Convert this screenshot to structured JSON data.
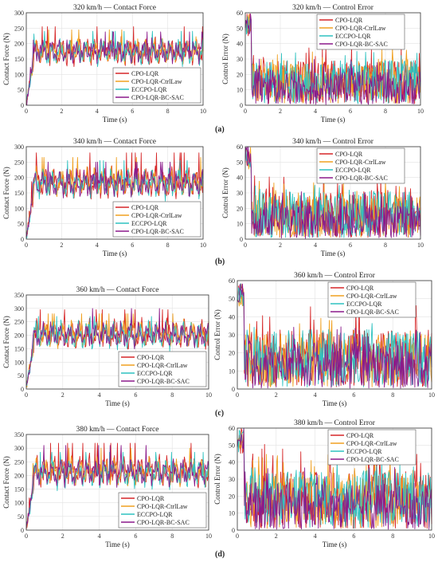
{
  "figure": {
    "panel_labels": [
      "(a)",
      "(b)",
      "(c)",
      "(d)"
    ],
    "series_colors": [
      "#d62728",
      "#f0a020",
      "#2fc2c0",
      "#8b1a8b"
    ]
  },
  "chart_data": [
    {
      "type": "line",
      "title": "320 km/h — Contact Force",
      "xlabel": "Time (s)",
      "ylabel": "Contact Force (N)",
      "xlim": [
        0,
        10
      ],
      "ylim": [
        0,
        300
      ],
      "xticks": [
        "0",
        "2",
        "4",
        "6",
        "8",
        "10"
      ],
      "yticks": [
        "0",
        "50",
        "100",
        "150",
        "200",
        "250",
        "300"
      ],
      "grid": true,
      "legend_position": "bottom-right",
      "series": [
        {
          "name": "CPO-LQR",
          "color": "#d62728",
          "mean": 175,
          "amp": 45,
          "peak": 255
        },
        {
          "name": "CPO-LQR-CtrlLaw",
          "color": "#f0a020",
          "mean": 175,
          "amp": 40,
          "peak": 245
        },
        {
          "name": "ECCPO-LQR",
          "color": "#2fc2c0",
          "mean": 172,
          "amp": 42,
          "peak": 240
        },
        {
          "name": "CPO-LQR-BC-SAC",
          "color": "#8b1a8b",
          "mean": 175,
          "amp": 38,
          "peak": 238
        }
      ]
    },
    {
      "type": "line",
      "title": "320 km/h — Control Error",
      "xlabel": "Time (s)",
      "ylabel": "Control Error (N)",
      "xlim": [
        0,
        10
      ],
      "ylim": [
        0,
        60
      ],
      "xticks": [
        "0",
        "2",
        "4",
        "6",
        "8",
        "10"
      ],
      "yticks": [
        "0",
        "10",
        "20",
        "30",
        "40",
        "50",
        "60"
      ],
      "grid": true,
      "legend_position": "top-right",
      "series": [
        {
          "name": "CPO-LQR",
          "color": "#d62728",
          "mean": 15,
          "amp": 14,
          "peak": 40
        },
        {
          "name": "CPO-LQR-CtrlLaw",
          "color": "#f0a020",
          "mean": 14,
          "amp": 13,
          "peak": 37
        },
        {
          "name": "ECCPO-LQR",
          "color": "#2fc2c0",
          "mean": 15,
          "amp": 14,
          "peak": 35
        },
        {
          "name": "CPO-LQR-BC-SAC",
          "color": "#8b1a8b",
          "mean": 11,
          "amp": 11,
          "peak": 30
        }
      ]
    },
    {
      "type": "line",
      "title": "340 km/h — Contact Force",
      "xlabel": "Time (s)",
      "ylabel": "Contact Force (N)",
      "xlim": [
        0,
        10
      ],
      "ylim": [
        0,
        300
      ],
      "xticks": [
        "0",
        "2",
        "4",
        "6",
        "8",
        "10"
      ],
      "yticks": [
        "0",
        "50",
        "100",
        "150",
        "200",
        "250",
        "300"
      ],
      "grid": true,
      "legend_position": "bottom-right",
      "series": [
        {
          "name": "CPO-LQR",
          "color": "#d62728",
          "mean": 185,
          "amp": 50,
          "peak": 280
        },
        {
          "name": "CPO-LQR-CtrlLaw",
          "color": "#f0a020",
          "mean": 185,
          "amp": 45,
          "peak": 265
        },
        {
          "name": "ECCPO-LQR",
          "color": "#2fc2c0",
          "mean": 180,
          "amp": 48,
          "peak": 255
        },
        {
          "name": "CPO-LQR-BC-SAC",
          "color": "#8b1a8b",
          "mean": 182,
          "amp": 42,
          "peak": 250
        }
      ]
    },
    {
      "type": "line",
      "title": "340 km/h — Control Error",
      "xlabel": "Time (s)",
      "ylabel": "Control Error (N)",
      "xlim": [
        0,
        10
      ],
      "ylim": [
        0,
        60
      ],
      "xticks": [
        "0",
        "2",
        "4",
        "6",
        "8",
        "10"
      ],
      "yticks": [
        "0",
        "10",
        "20",
        "30",
        "40",
        "50",
        "60"
      ],
      "grid": true,
      "legend_position": "top-right",
      "series": [
        {
          "name": "CPO-LQR",
          "color": "#d62728",
          "mean": 16,
          "amp": 15,
          "peak": 42
        },
        {
          "name": "CPO-LQR-CtrlLaw",
          "color": "#f0a020",
          "mean": 15,
          "amp": 14,
          "peak": 38
        },
        {
          "name": "ECCPO-LQR",
          "color": "#2fc2c0",
          "mean": 16,
          "amp": 15,
          "peak": 36
        },
        {
          "name": "CPO-LQR-BC-SAC",
          "color": "#8b1a8b",
          "mean": 12,
          "amp": 12,
          "peak": 32
        }
      ]
    },
    {
      "type": "line",
      "title": "360 km/h — Contact Force",
      "xlabel": "Time (s)",
      "ylabel": "Contact Force (N)",
      "xlim": [
        0,
        10
      ],
      "ylim": [
        0,
        350
      ],
      "xticks": [
        "0",
        "2",
        "4",
        "6",
        "8",
        "10"
      ],
      "yticks": [
        "0",
        "50",
        "100",
        "150",
        "200",
        "250",
        "300",
        "350"
      ],
      "grid": true,
      "legend_position": "bottom-right",
      "series": [
        {
          "name": "CPO-LQR",
          "color": "#d62728",
          "mean": 205,
          "amp": 55,
          "peak": 295
        },
        {
          "name": "CPO-LQR-CtrlLaw",
          "color": "#f0a020",
          "mean": 205,
          "amp": 50,
          "peak": 280
        },
        {
          "name": "ECCPO-LQR",
          "color": "#2fc2c0",
          "mean": 200,
          "amp": 52,
          "peak": 270
        },
        {
          "name": "CPO-LQR-BC-SAC",
          "color": "#8b1a8b",
          "mean": 202,
          "amp": 46,
          "peak": 300
        }
      ]
    },
    {
      "type": "line",
      "title": "360 km/h — Control Error",
      "xlabel": "Time (s)",
      "ylabel": "Control Error (N)",
      "xlim": [
        0,
        10
      ],
      "ylim": [
        0,
        60
      ],
      "xticks": [
        "0",
        "2",
        "4",
        "6",
        "8",
        "10"
      ],
      "yticks": [
        "0",
        "10",
        "20",
        "30",
        "40",
        "50",
        "60"
      ],
      "grid": true,
      "legend_position": "top-right",
      "series": [
        {
          "name": "CPO-LQR",
          "color": "#d62728",
          "mean": 17,
          "amp": 16,
          "peak": 49
        },
        {
          "name": "CPO-LQR-CtrlLaw",
          "color": "#f0a020",
          "mean": 16,
          "amp": 15,
          "peak": 42
        },
        {
          "name": "ECCPO-LQR",
          "color": "#2fc2c0",
          "mean": 17,
          "amp": 16,
          "peak": 38
        },
        {
          "name": "CPO-LQR-BC-SAC",
          "color": "#8b1a8b",
          "mean": 13,
          "amp": 13,
          "peak": 35
        }
      ]
    },
    {
      "type": "line",
      "title": "380 km/h — Contact Force",
      "xlabel": "Time (s)",
      "ylabel": "Contact Force (N)",
      "xlim": [
        0,
        10
      ],
      "ylim": [
        0,
        350
      ],
      "xticks": [
        "0",
        "2",
        "4",
        "6",
        "8",
        "10"
      ],
      "yticks": [
        "0",
        "50",
        "100",
        "150",
        "200",
        "250",
        "300",
        "350"
      ],
      "grid": true,
      "legend_position": "bottom-right",
      "series": [
        {
          "name": "CPO-LQR",
          "color": "#d62728",
          "mean": 215,
          "amp": 58,
          "peak": 318
        },
        {
          "name": "CPO-LQR-CtrlLaw",
          "color": "#f0a020",
          "mean": 213,
          "amp": 52,
          "peak": 300
        },
        {
          "name": "ECCPO-LQR",
          "color": "#2fc2c0",
          "mean": 208,
          "amp": 55,
          "peak": 285
        },
        {
          "name": "CPO-LQR-BC-SAC",
          "color": "#8b1a8b",
          "mean": 212,
          "amp": 48,
          "peak": 310
        }
      ]
    },
    {
      "type": "line",
      "title": "380 km/h — Control Error",
      "xlabel": "Time (s)",
      "ylabel": "Control Error (N)",
      "xlim": [
        0,
        10
      ],
      "ylim": [
        0,
        60
      ],
      "xticks": [
        "0",
        "2",
        "4",
        "6",
        "8",
        "10"
      ],
      "yticks": [
        "0",
        "10",
        "20",
        "30",
        "40",
        "50",
        "60"
      ],
      "grid": true,
      "legend_position": "top-right",
      "series": [
        {
          "name": "CPO-LQR",
          "color": "#d62728",
          "mean": 18,
          "amp": 17,
          "peak": 52
        },
        {
          "name": "CPO-LQR-CtrlLaw",
          "color": "#f0a020",
          "mean": 17,
          "amp": 16,
          "peak": 45
        },
        {
          "name": "ECCPO-LQR",
          "color": "#2fc2c0",
          "mean": 18,
          "amp": 17,
          "peak": 40
        },
        {
          "name": "CPO-LQR-BC-SAC",
          "color": "#8b1a8b",
          "mean": 14,
          "amp": 14,
          "peak": 37
        }
      ]
    }
  ]
}
